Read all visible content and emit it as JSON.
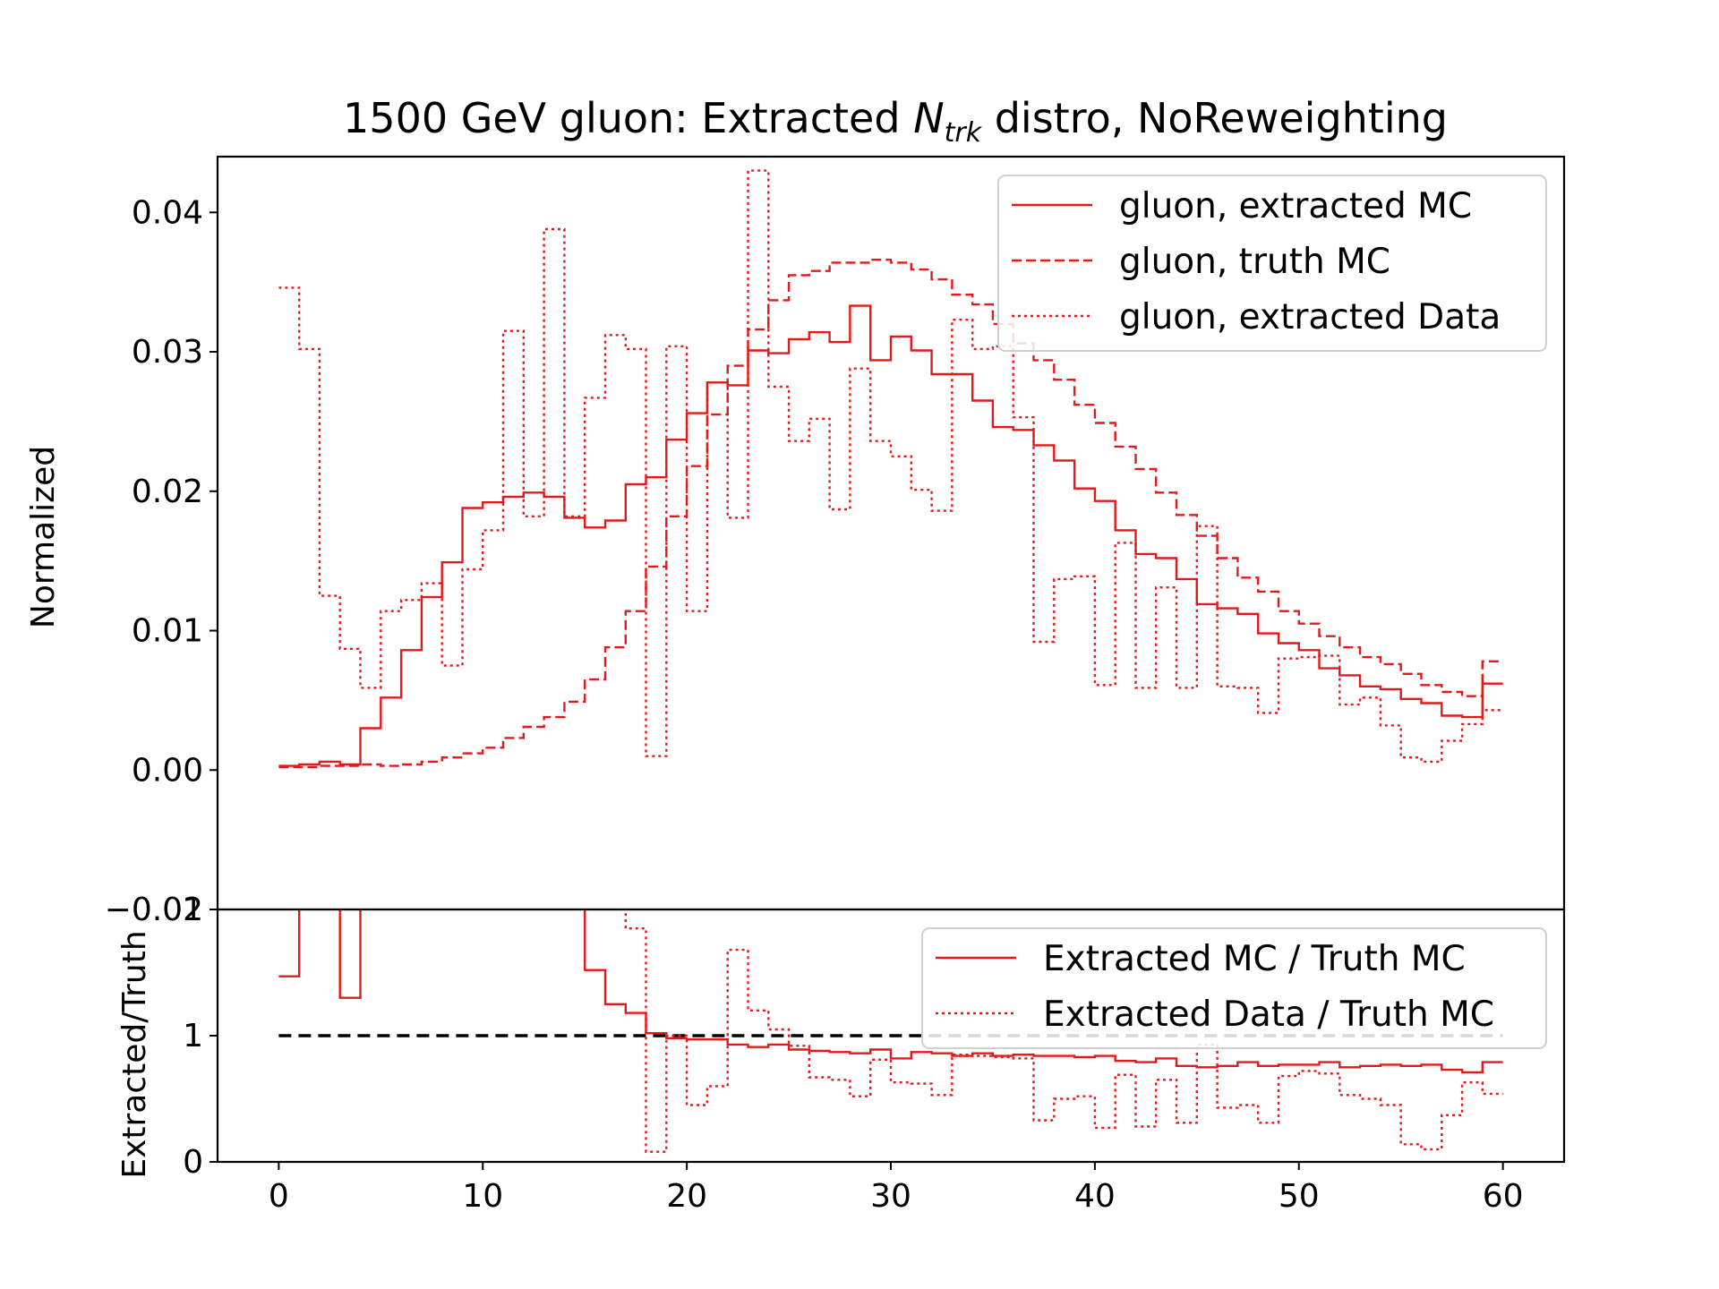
{
  "chart_data": [
    {
      "type": "line",
      "title_main": "1500 GeV gluon: Extracted ",
      "title_symbol": "N",
      "title_subscript": "trk",
      "title_tail": " distro, NoReweighting",
      "xlabel": "",
      "ylabel": "Normalized",
      "xlim": [
        -3,
        63
      ],
      "ylim": [
        -0.01,
        0.044
      ],
      "yticks": [
        -0.01,
        0.0,
        0.01,
        0.02,
        0.03,
        0.04
      ],
      "ytick_labels": [
        "−0.01",
        "0.00",
        "0.01",
        "0.02",
        "0.03",
        "0.04"
      ],
      "drawstyle": "steps",
      "legend_position": "top-right",
      "x": [
        0,
        1,
        2,
        3,
        4,
        5,
        6,
        7,
        8,
        9,
        10,
        11,
        12,
        13,
        14,
        15,
        16,
        17,
        18,
        19,
        20,
        21,
        22,
        23,
        24,
        25,
        26,
        27,
        28,
        29,
        30,
        31,
        32,
        33,
        34,
        35,
        36,
        37,
        38,
        39,
        40,
        41,
        42,
        43,
        44,
        45,
        46,
        47,
        48,
        49,
        50,
        51,
        52,
        53,
        54,
        55,
        56,
        57,
        58,
        59,
        60
      ],
      "series": [
        {
          "name": "gluon, extracted MC",
          "color": "#e31a1c",
          "linestyle": "solid",
          "values": [
            0.0003,
            0.0004,
            0.0006,
            0.0004,
            0.003,
            0.0052,
            0.0086,
            0.0124,
            0.0149,
            0.0188,
            0.0192,
            0.0196,
            0.0199,
            0.0196,
            0.0181,
            0.0174,
            0.0179,
            0.0205,
            0.021,
            0.0237,
            0.0256,
            0.0278,
            0.0276,
            0.0301,
            0.0299,
            0.0309,
            0.0314,
            0.0307,
            0.0333,
            0.0294,
            0.0311,
            0.0301,
            0.0284,
            0.0284,
            0.0265,
            0.0246,
            0.0244,
            0.0233,
            0.0222,
            0.0202,
            0.0193,
            0.0172,
            0.0155,
            0.0152,
            0.0137,
            0.0119,
            0.0116,
            0.0112,
            0.0098,
            0.0091,
            0.0086,
            0.0073,
            0.0068,
            0.006,
            0.0058,
            0.0051,
            0.0048,
            0.0039,
            0.0038,
            0.0062,
            0.0062
          ]
        },
        {
          "name": "gluon, truth MC",
          "color": "#e31a1c",
          "linestyle": "dashed",
          "values": [
            0.0002,
            0.0002,
            0.0003,
            0.0003,
            0.0004,
            0.0003,
            0.0004,
            0.0006,
            0.0009,
            0.0012,
            0.0016,
            0.0023,
            0.0031,
            0.0038,
            0.0049,
            0.0065,
            0.0088,
            0.0114,
            0.0146,
            0.0182,
            0.0218,
            0.0255,
            0.029,
            0.0316,
            0.0337,
            0.0355,
            0.0358,
            0.0364,
            0.0364,
            0.0366,
            0.0364,
            0.0359,
            0.0352,
            0.0341,
            0.0334,
            0.032,
            0.0306,
            0.0294,
            0.028,
            0.0262,
            0.0249,
            0.0232,
            0.0216,
            0.0199,
            0.0183,
            0.0168,
            0.0152,
            0.0138,
            0.0128,
            0.0114,
            0.0105,
            0.0096,
            0.0088,
            0.0081,
            0.0076,
            0.0069,
            0.0061,
            0.0056,
            0.0053,
            0.0078,
            0.0078
          ]
        },
        {
          "name": "gluon, extracted Data",
          "color": "#e31a1c",
          "linestyle": "dotted",
          "values": [
            0.0346,
            0.0302,
            0.0125,
            0.0087,
            0.0059,
            0.0114,
            0.0122,
            0.0134,
            0.0075,
            0.0144,
            0.0172,
            0.0315,
            0.0182,
            0.0388,
            0.0182,
            0.0267,
            0.0312,
            0.0302,
            0.001,
            0.0304,
            0.0114,
            0.0278,
            0.0181,
            0.043,
            0.0275,
            0.0236,
            0.0252,
            0.0187,
            0.0288,
            0.0236,
            0.0225,
            0.0201,
            0.0186,
            0.0323,
            0.0302,
            0.0304,
            0.0253,
            0.0092,
            0.0137,
            0.0139,
            0.0061,
            0.0163,
            0.0059,
            0.0131,
            0.0059,
            0.0175,
            0.006,
            0.0059,
            0.0041,
            0.008,
            0.0081,
            0.0082,
            0.0047,
            0.0052,
            0.0032,
            0.0009,
            0.0006,
            0.0021,
            0.0033,
            0.0043,
            0.0043
          ]
        }
      ]
    },
    {
      "type": "line",
      "xlabel": "",
      "ylabel": "Extracted/Truth",
      "xlim": [
        -3,
        63
      ],
      "ylim": [
        0,
        2
      ],
      "yticks": [
        0,
        1,
        2
      ],
      "ytick_labels": [
        "0",
        "1",
        "2"
      ],
      "xticks": [
        0,
        10,
        20,
        30,
        40,
        50,
        60
      ],
      "xtick_labels": [
        "0",
        "10",
        "20",
        "30",
        "40",
        "50",
        "60"
      ],
      "drawstyle": "steps",
      "legend_position": "top-right",
      "reference_line": {
        "y": 1,
        "color": "#000000",
        "linestyle": "dashed"
      },
      "x": [
        0,
        1,
        2,
        3,
        4,
        5,
        6,
        7,
        8,
        9,
        10,
        11,
        12,
        13,
        14,
        15,
        16,
        17,
        18,
        19,
        20,
        21,
        22,
        23,
        24,
        25,
        26,
        27,
        28,
        29,
        30,
        31,
        32,
        33,
        34,
        35,
        36,
        37,
        38,
        39,
        40,
        41,
        42,
        43,
        44,
        45,
        46,
        47,
        48,
        49,
        50,
        51,
        52,
        53,
        54,
        55,
        56,
        57,
        58,
        59,
        60
      ],
      "series": [
        {
          "name": "Extracted MC / Truth MC",
          "color": "#e31a1c",
          "linestyle": "solid",
          "values": [
            1.47,
            2.5,
            2.5,
            1.3,
            2.5,
            2.5,
            2.5,
            2.5,
            2.5,
            2.5,
            2.5,
            2.5,
            2.5,
            2.5,
            2.5,
            1.52,
            1.25,
            1.18,
            1.02,
            0.98,
            0.97,
            0.97,
            0.93,
            0.91,
            0.93,
            0.89,
            0.88,
            0.87,
            0.86,
            0.89,
            0.82,
            0.87,
            0.86,
            0.84,
            0.86,
            0.84,
            0.85,
            0.84,
            0.84,
            0.83,
            0.84,
            0.8,
            0.79,
            0.82,
            0.76,
            0.75,
            0.76,
            0.79,
            0.76,
            0.77,
            0.77,
            0.79,
            0.75,
            0.76,
            0.77,
            0.76,
            0.77,
            0.73,
            0.71,
            0.79,
            0.79
          ]
        },
        {
          "name": "Extracted Data / Truth MC",
          "color": "#e31a1c",
          "linestyle": "dotted",
          "values": [
            2.5,
            2.5,
            2.5,
            2.5,
            2.5,
            2.5,
            2.5,
            2.5,
            2.5,
            2.5,
            2.5,
            2.5,
            2.5,
            2.5,
            2.5,
            2.5,
            2.5,
            1.85,
            0.08,
            1.0,
            0.45,
            0.6,
            1.68,
            1.2,
            1.05,
            0.92,
            0.67,
            0.65,
            0.52,
            0.81,
            0.63,
            0.62,
            0.53,
            0.85,
            0.84,
            0.83,
            0.82,
            0.33,
            0.5,
            0.52,
            0.27,
            0.69,
            0.28,
            0.65,
            0.31,
            0.93,
            0.43,
            0.45,
            0.31,
            0.68,
            0.72,
            0.7,
            0.53,
            0.5,
            0.45,
            0.14,
            0.1,
            0.37,
            0.63,
            0.54,
            0.54
          ]
        }
      ]
    }
  ]
}
